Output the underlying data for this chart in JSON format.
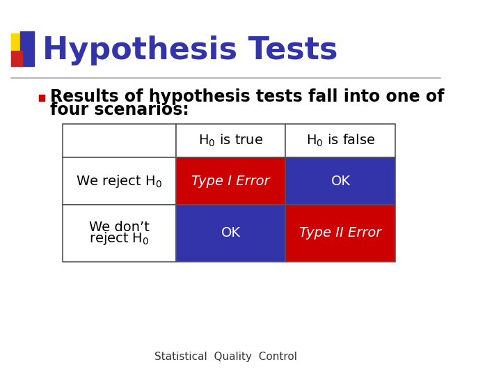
{
  "title": "Hypothesis Tests",
  "title_color": "#3333AA",
  "title_fontsize": 32,
  "bullet_text_line1": "Results of hypothesis tests fall into one of",
  "bullet_text_line2": "four scenarios:",
  "bullet_color": "#CC0000",
  "body_fontsize": 17,
  "background_color": "#FFFFFF",
  "border_color": "#555555",
  "table": {
    "col_headers": [
      "",
      "H₀ is true",
      "H₀ is false"
    ],
    "row_headers": [
      "",
      "We reject H₀",
      "We don’t\nreject H₀"
    ],
    "cells": [
      [
        "Type I Error",
        "OK"
      ],
      [
        "OK",
        "Type II Error"
      ]
    ],
    "cell_colors": [
      [
        "#CC0000",
        "#3333AA"
      ],
      [
        "#3333AA",
        "#CC0000"
      ]
    ],
    "cell_text_color": "#FFFFFF",
    "header_bg": "#FFFFFF",
    "header_text_color": "#000000",
    "row_header_text_color": "#000000"
  },
  "footer_text": "Statistical  Quality  Control",
  "footer_fontsize": 11,
  "footer_color": "#333333",
  "logo_colors": {
    "yellow": "#FFD700",
    "blue": "#3333AA",
    "red": "#CC2222"
  }
}
